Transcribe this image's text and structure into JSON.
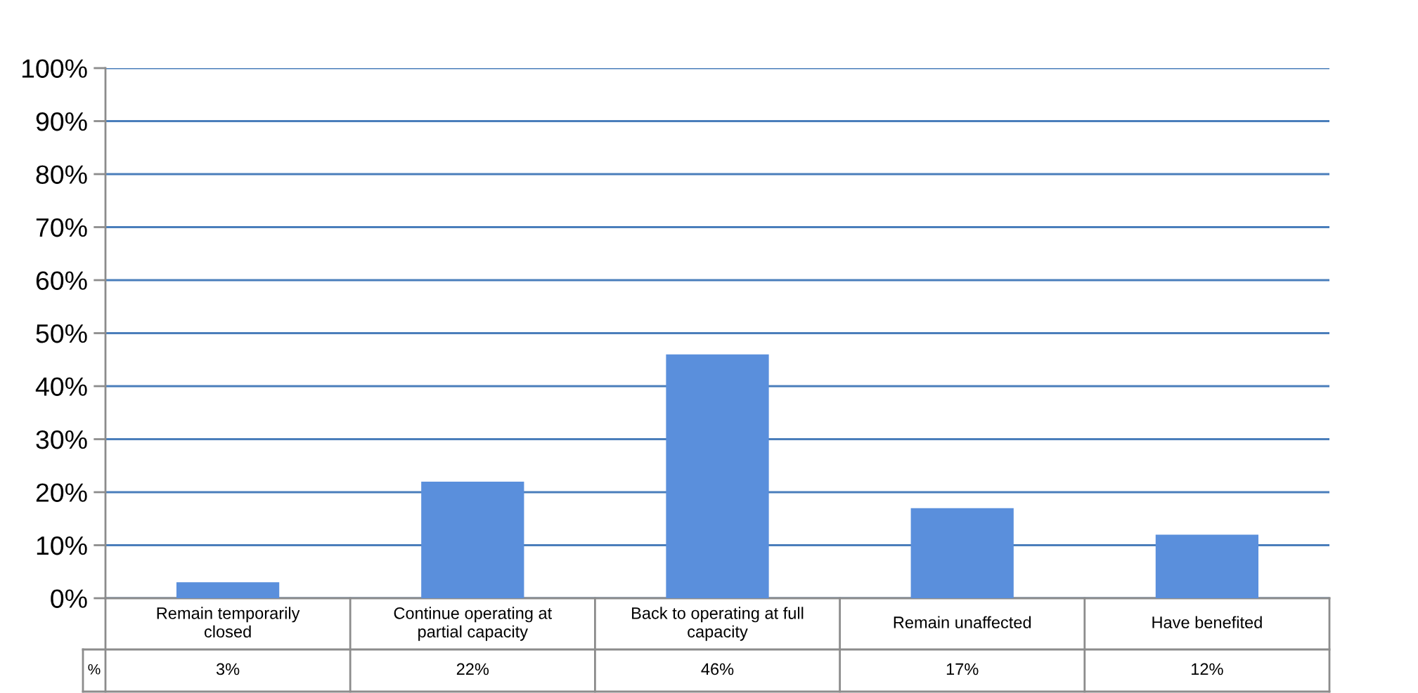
{
  "chart_data": {
    "type": "bar",
    "categories": [
      "Remain temporarily closed",
      "Continue operating at partial capacity",
      "Back to operating at full capacity",
      "Remain unaffected",
      "Have benefited"
    ],
    "series": [
      {
        "name": "%",
        "color": "#5a8fdc",
        "values": [
          3,
          22,
          46,
          17,
          12
        ],
        "value_labels": [
          "3%",
          "22%",
          "46%",
          "17%",
          "12%"
        ]
      }
    ],
    "ylim": [
      0,
      100
    ],
    "yticks": [
      {
        "value": 0,
        "label": "0%"
      },
      {
        "value": 10,
        "label": "10%"
      },
      {
        "value": 20,
        "label": "20%"
      },
      {
        "value": 30,
        "label": "30%"
      },
      {
        "value": 40,
        "label": "40%"
      },
      {
        "value": 50,
        "label": "50%"
      },
      {
        "value": 60,
        "label": "60%"
      },
      {
        "value": 70,
        "label": "70%"
      },
      {
        "value": 80,
        "label": "80%"
      },
      {
        "value": 90,
        "label": "90%"
      },
      {
        "value": 100,
        "label": "100%"
      }
    ],
    "grid": "y"
  }
}
